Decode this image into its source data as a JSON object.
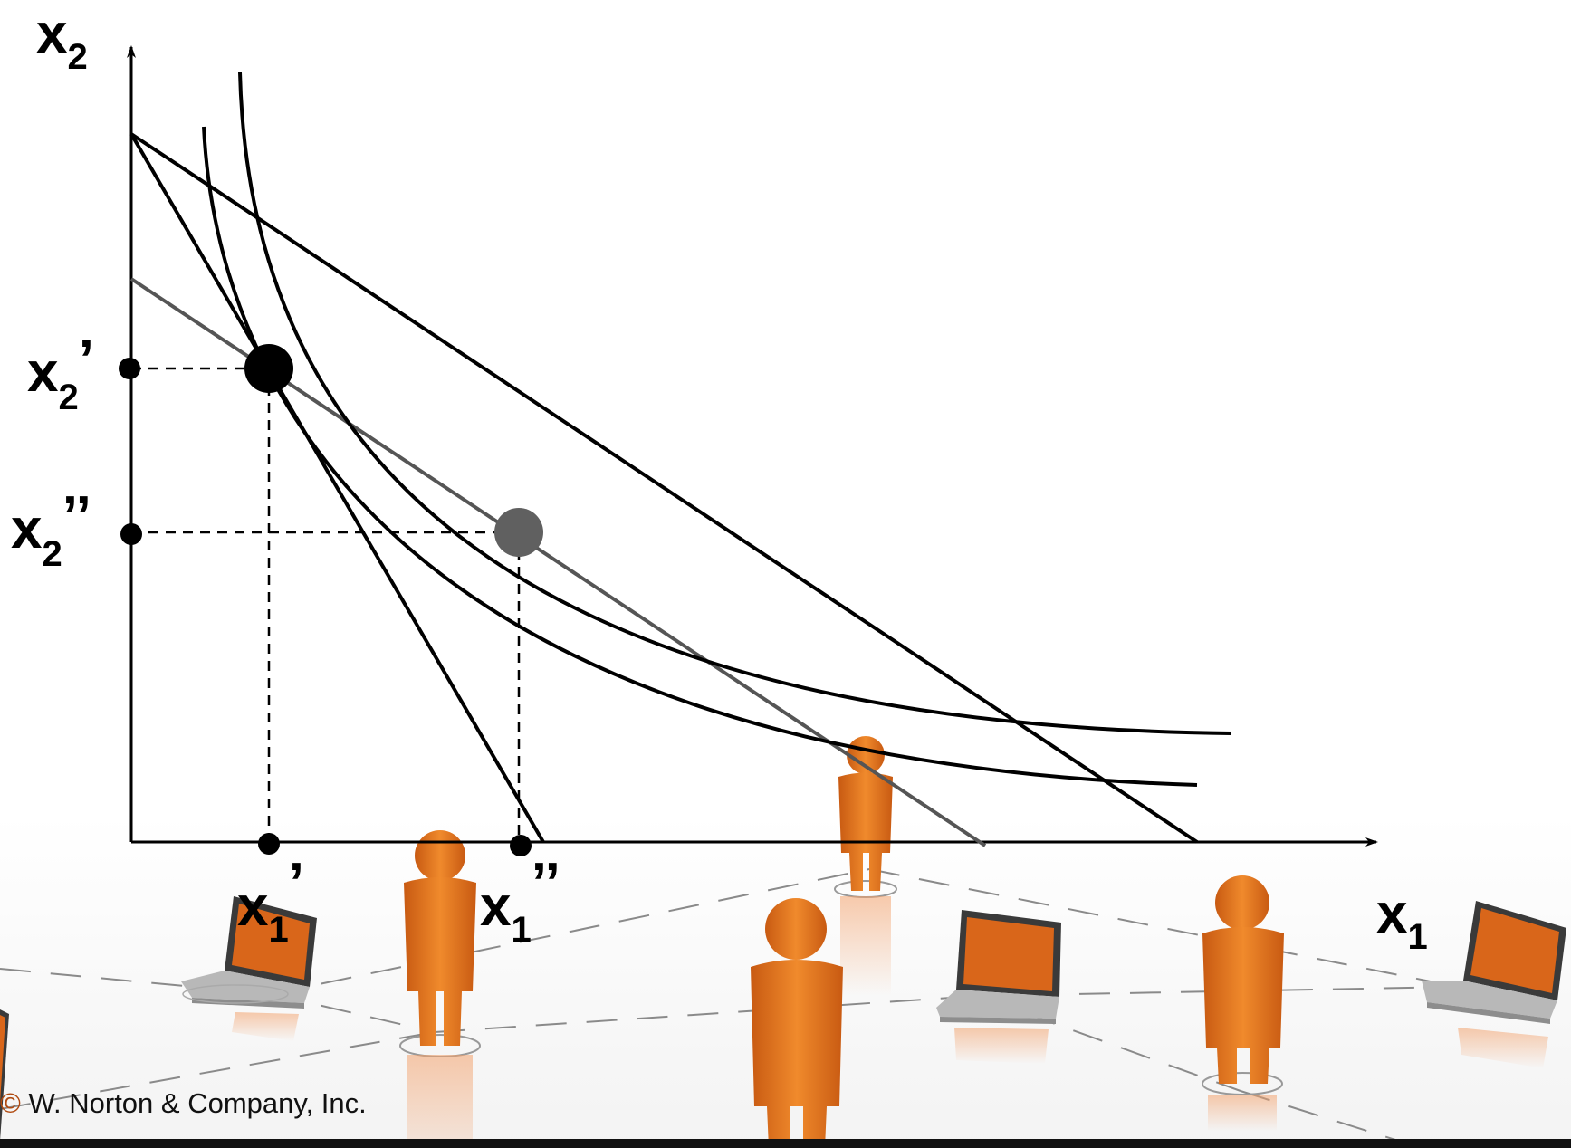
{
  "diagram": {
    "axis_labels": {
      "y_var": "x",
      "y_sub": "2",
      "x_var": "x",
      "x_sub": "1"
    },
    "tick_labels": {
      "x2_prime": {
        "var": "x",
        "sub": "2",
        "mark": "’"
      },
      "x2_double": {
        "var": "x",
        "sub": "2",
        "mark": "’’"
      },
      "x1_prime": {
        "var": "x",
        "sub": "1",
        "mark": "’"
      },
      "x1_double": {
        "var": "x",
        "sub": "1",
        "mark": "’’"
      }
    },
    "colors": {
      "ink": "#000000",
      "gray_line": "#555555",
      "gray_point": "#606060",
      "figure_orange": "#e8731a",
      "laptop_screen": "#d9661a"
    }
  },
  "background_scene": {
    "description_icons": [
      "person-figure-icon",
      "laptop-icon"
    ]
  },
  "footer": {
    "copyright": "W. Norton & Company, Inc."
  }
}
